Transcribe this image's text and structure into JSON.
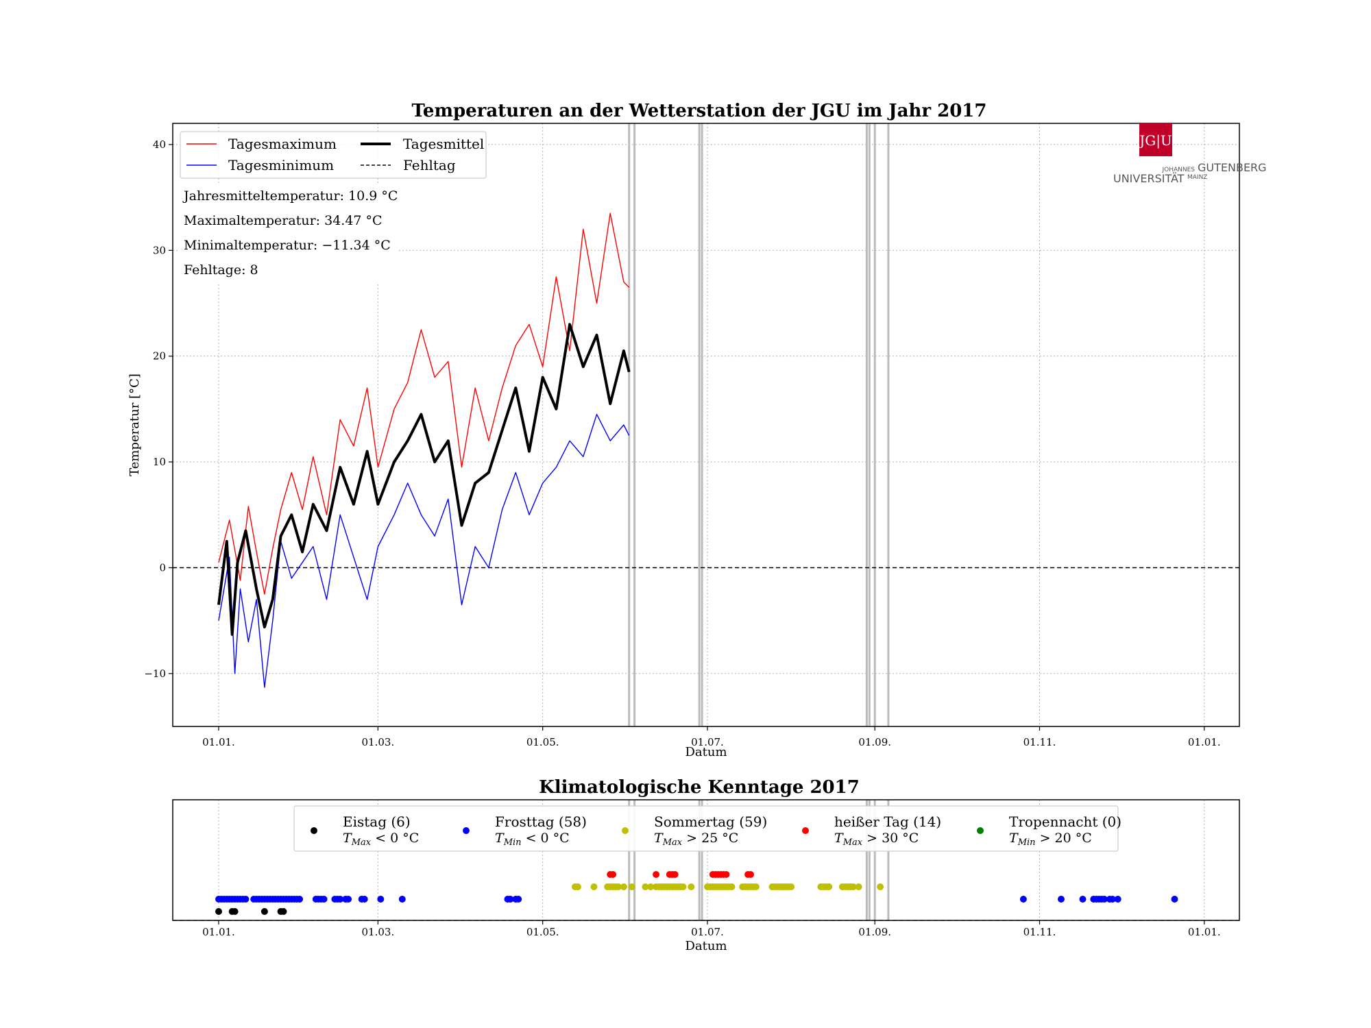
{
  "colors": {
    "max": "#ff0000",
    "min": "#0000ff",
    "mean": "#000000",
    "missing": "#bbbbbb",
    "eistag": "#000000",
    "frosttag": "#0000ff",
    "sommertag": "#bfbf00",
    "heisser_tag": "#ff0000",
    "tropennacht": "#008000",
    "logo_red": "#c1002a"
  },
  "logo": {
    "mark": "JG|U",
    "line1_small": "JOHANNES",
    "line1_big": "GUTENBERG",
    "line2": "UNIVERSITÄT",
    "line2_small": "MAINZ"
  },
  "chart_data": [
    {
      "type": "line",
      "title": "Temperaturen an der Wetterstation der JGU im Jahr 2017",
      "xlabel": "Datum",
      "ylabel": "Temperatur [°C]",
      "x_ticks": [
        "01.01.",
        "01.03.",
        "01.05.",
        "01.07.",
        "01.09.",
        "01.11.",
        "01.01."
      ],
      "x_tick_days": [
        0,
        59,
        120,
        181,
        243,
        304,
        365
      ],
      "y_ticks": [
        "−10",
        "0",
        "10",
        "20",
        "30",
        "40"
      ],
      "y_tick_values": [
        -10,
        0,
        10,
        20,
        30,
        40
      ],
      "xlim_days": [
        -17,
        378
      ],
      "ylim": [
        -15,
        42
      ],
      "grid": true,
      "legend_position": "top-left",
      "zero_line": 0,
      "legend": [
        {
          "key": "max",
          "label": "Tagesmaximum",
          "style": "thin-red"
        },
        {
          "key": "min",
          "label": "Tagesminimum",
          "style": "thin-blue"
        },
        {
          "key": "mean",
          "label": "Tagesmittel",
          "style": "thick-black"
        },
        {
          "key": "missing",
          "label": "Fehltag",
          "style": "dashed-black"
        }
      ],
      "stats": [
        "Jahresmitteltemperatur: 10.9 °C",
        "Maximaltemperatur: 34.47 °C",
        "Minimaltemperatur: −11.34 °C",
        "Fehltage: 8"
      ],
      "missing_days": [
        152,
        154,
        178,
        179,
        240,
        241,
        243,
        248
      ],
      "series": [
        {
          "name": "Tagesmaximum",
          "days": [
            0,
            4,
            8,
            11,
            14,
            17,
            20,
            23,
            27,
            31,
            35,
            40,
            45,
            50,
            55,
            59,
            65,
            70,
            75,
            80,
            85,
            90,
            95,
            100,
            105,
            110,
            115,
            120,
            125,
            130,
            135,
            140,
            145,
            150,
            152
          ],
          "values": [
            0.5,
            4.5,
            -1.2,
            5.8,
            1.5,
            -2.5,
            1.8,
            5.5,
            9.0,
            5.5,
            10.5,
            5.0,
            14.0,
            11.5,
            17.0,
            9.5,
            15.0,
            17.5,
            22.5,
            18.0,
            19.5,
            9.5,
            17.0,
            12.0,
            17.0,
            21.0,
            23.0,
            19.0,
            27.5,
            20.5,
            32.0,
            25.0,
            33.5,
            27.0,
            26.5
          ]
        },
        {
          "name": "Tagesminimum",
          "days": [
            0,
            4,
            6,
            8,
            11,
            14,
            17,
            20,
            23,
            27,
            31,
            35,
            40,
            45,
            50,
            55,
            59,
            65,
            70,
            75,
            80,
            85,
            90,
            95,
            100,
            105,
            110,
            115,
            120,
            125,
            130,
            135,
            140,
            145,
            150,
            152
          ],
          "values": [
            -5.0,
            1.0,
            -10.0,
            -2.0,
            -7.0,
            -3.0,
            -11.3,
            -5.0,
            2.5,
            -1.0,
            0.5,
            2.0,
            -3.0,
            5.0,
            1.0,
            -3.0,
            2.0,
            5.0,
            8.0,
            5.0,
            3.0,
            6.5,
            -3.5,
            2.0,
            0.0,
            5.5,
            9.0,
            5.0,
            8.0,
            9.5,
            12.0,
            10.5,
            14.5,
            12.0,
            13.5,
            12.5
          ]
        },
        {
          "name": "Tagesmittel",
          "days": [
            0,
            3,
            5,
            7,
            10,
            14,
            17,
            20,
            23,
            27,
            31,
            35,
            40,
            45,
            50,
            55,
            59,
            65,
            70,
            75,
            80,
            85,
            90,
            95,
            100,
            105,
            110,
            115,
            120,
            125,
            130,
            135,
            140,
            145,
            150,
            152
          ],
          "values": [
            -3.5,
            2.5,
            -6.3,
            0.5,
            3.5,
            -2.0,
            -5.6,
            -3.0,
            3.0,
            5.0,
            1.5,
            6.0,
            3.5,
            9.5,
            6.0,
            11.0,
            6.0,
            10.0,
            12.0,
            14.5,
            10.0,
            12.0,
            4.0,
            8.0,
            9.0,
            13.0,
            17.0,
            11.0,
            18.0,
            15.0,
            23.0,
            19.0,
            22.0,
            15.5,
            20.5,
            18.5
          ]
        }
      ]
    },
    {
      "type": "scatter",
      "title": "Klimatologische Kenntage 2017",
      "xlabel": "Datum",
      "x_ticks": [
        "01.01.",
        "01.03.",
        "01.05.",
        "01.07.",
        "01.09.",
        "01.11.",
        "01.01."
      ],
      "legend": [
        {
          "key": "eistag",
          "label": "Eistag (6)",
          "sub": "T",
          "subscript": "Max",
          "rest": " < 0 °C"
        },
        {
          "key": "frosttag",
          "label": "Frosttag (58)",
          "sub": "T",
          "subscript": "Min",
          "rest": " < 0 °C"
        },
        {
          "key": "sommertag",
          "label": "Sommertag (59)",
          "sub": "T",
          "subscript": "Max",
          "rest": " > 25 °C"
        },
        {
          "key": "heisser_tag",
          "label": "heißer Tag (14)",
          "sub": "T",
          "subscript": "Max",
          "rest": " > 30 °C"
        },
        {
          "key": "tropennacht",
          "label": "Tropennacht (0)",
          "sub": "T",
          "subscript": "Min",
          "rest": " > 20 °C"
        }
      ],
      "series": [
        {
          "name": "Eistag",
          "days": [
            0,
            5,
            6,
            17,
            23,
            24
          ]
        },
        {
          "name": "Frosttag",
          "days": [
            0,
            1,
            2,
            3,
            4,
            5,
            6,
            7,
            8,
            9,
            10,
            13,
            14,
            15,
            16,
            17,
            18,
            19,
            20,
            21,
            22,
            23,
            24,
            25,
            26,
            27,
            28,
            29,
            30,
            36,
            37,
            38,
            39,
            43,
            44,
            45,
            47,
            48,
            53,
            54,
            60,
            68,
            107,
            108,
            110,
            111,
            298,
            312,
            320,
            324,
            325,
            326,
            327,
            328,
            330,
            331,
            333,
            354
          ]
        },
        {
          "name": "Sommertag",
          "days": [
            132,
            133,
            139,
            144,
            145,
            146,
            147,
            148,
            150,
            153,
            158,
            160,
            162,
            163,
            164,
            165,
            166,
            167,
            168,
            169,
            170,
            171,
            172,
            175,
            181,
            182,
            183,
            184,
            185,
            186,
            187,
            188,
            189,
            190,
            194,
            195,
            196,
            197,
            198,
            199,
            205,
            206,
            207,
            208,
            209,
            210,
            211,
            212,
            223,
            224,
            225,
            226,
            231,
            232,
            233,
            234,
            235,
            237,
            245
          ]
        },
        {
          "name": "heißer Tag",
          "days": [
            145,
            146,
            162,
            167,
            168,
            169,
            183,
            184,
            185,
            186,
            187,
            188,
            196,
            197
          ]
        },
        {
          "name": "Tropennacht",
          "days": []
        }
      ]
    }
  ]
}
